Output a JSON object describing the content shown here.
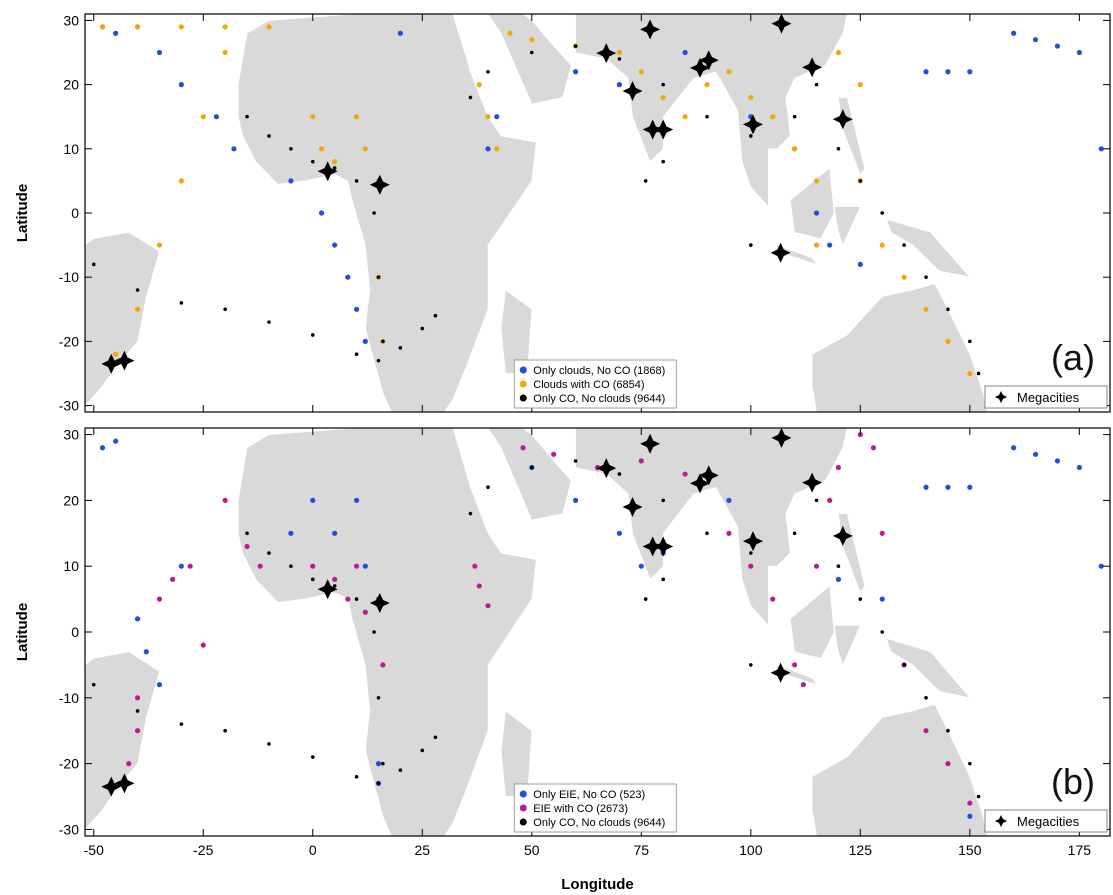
{
  "chart_data": [
    {
      "type": "scatter",
      "panel_label": "(a)",
      "xlabel": "Longitude",
      "ylabel": "Latitude",
      "xlim": [
        -52,
        182
      ],
      "ylim": [
        -31,
        31
      ],
      "xticks": [
        -50,
        -25,
        0,
        25,
        50,
        75,
        100,
        125,
        150,
        175
      ],
      "yticks": [
        30,
        20,
        10,
        0,
        -10,
        -20,
        -30
      ],
      "background": "world map (land in light gray)",
      "legend_position": "bottom-center",
      "series": [
        {
          "name": "Only clouds, No CO (1868)",
          "color": "#1f4fe0",
          "marker": "dot",
          "points": [
            [
              -48,
              29
            ],
            [
              -45,
              28
            ],
            [
              -40,
              29
            ],
            [
              -35,
              25
            ],
            [
              -30,
              20
            ],
            [
              -22,
              15
            ],
            [
              -18,
              10
            ],
            [
              -5,
              5
            ],
            [
              2,
              0
            ],
            [
              5,
              -5
            ],
            [
              8,
              -10
            ],
            [
              10,
              -15
            ],
            [
              12,
              -20
            ],
            [
              20,
              28
            ],
            [
              40,
              10
            ],
            [
              42,
              15
            ],
            [
              60,
              22
            ],
            [
              70,
              20
            ],
            [
              85,
              25
            ],
            [
              100,
              15
            ],
            [
              110,
              10
            ],
            [
              115,
              0
            ],
            [
              118,
              -5
            ],
            [
              125,
              -8
            ],
            [
              140,
              22
            ],
            [
              145,
              22
            ],
            [
              150,
              22
            ],
            [
              160,
              28
            ],
            [
              165,
              27
            ],
            [
              170,
              26
            ],
            [
              175,
              25
            ],
            [
              180,
              -30
            ],
            [
              155,
              -30
            ],
            [
              180,
              10
            ]
          ]
        },
        {
          "name": "Clouds with CO (6854)",
          "color": "#f5a70a",
          "marker": "dot",
          "points": [
            [
              -45,
              -22
            ],
            [
              -40,
              -15
            ],
            [
              -35,
              -5
            ],
            [
              -30,
              5
            ],
            [
              -25,
              15
            ],
            [
              -20,
              25
            ],
            [
              -48,
              29
            ],
            [
              -40,
              29
            ],
            [
              -30,
              29
            ],
            [
              -20,
              29
            ],
            [
              -10,
              29
            ],
            [
              0,
              15
            ],
            [
              2,
              10
            ],
            [
              5,
              8
            ],
            [
              10,
              15
            ],
            [
              12,
              10
            ],
            [
              15,
              5
            ],
            [
              15,
              -10
            ],
            [
              16,
              -20
            ],
            [
              45,
              28
            ],
            [
              50,
              27
            ],
            [
              60,
              26
            ],
            [
              70,
              25
            ],
            [
              75,
              22
            ],
            [
              80,
              18
            ],
            [
              85,
              15
            ],
            [
              90,
              20
            ],
            [
              95,
              22
            ],
            [
              100,
              18
            ],
            [
              105,
              15
            ],
            [
              110,
              10
            ],
            [
              115,
              5
            ],
            [
              115,
              -5
            ],
            [
              120,
              25
            ],
            [
              125,
              20
            ],
            [
              125,
              5
            ],
            [
              130,
              -5
            ],
            [
              135,
              -10
            ],
            [
              140,
              -15
            ],
            [
              145,
              -20
            ],
            [
              150,
              -25
            ],
            [
              38,
              20
            ],
            [
              40,
              15
            ],
            [
              42,
              10
            ]
          ]
        },
        {
          "name": "Only CO, No clouds (9644)",
          "color": "#000000",
          "marker": "dot",
          "points": [
            [
              -50,
              -8
            ],
            [
              -40,
              -12
            ],
            [
              -30,
              -14
            ],
            [
              -20,
              -15
            ],
            [
              -10,
              -17
            ],
            [
              0,
              -19
            ],
            [
              10,
              -22
            ],
            [
              15,
              -23
            ],
            [
              20,
              -21
            ],
            [
              25,
              -18
            ],
            [
              28,
              -16
            ],
            [
              -15,
              15
            ],
            [
              -10,
              12
            ],
            [
              -5,
              10
            ],
            [
              0,
              8
            ],
            [
              5,
              7
            ],
            [
              10,
              5
            ],
            [
              14,
              0
            ],
            [
              15,
              -10
            ],
            [
              16,
              -20
            ],
            [
              36,
              18
            ],
            [
              40,
              22
            ],
            [
              50,
              25
            ],
            [
              60,
              26
            ],
            [
              70,
              24
            ],
            [
              80,
              20
            ],
            [
              90,
              15
            ],
            [
              100,
              12
            ],
            [
              110,
              15
            ],
            [
              115,
              20
            ],
            [
              120,
              10
            ],
            [
              125,
              5
            ],
            [
              130,
              0
            ],
            [
              135,
              -5
            ],
            [
              140,
              -10
            ],
            [
              145,
              -15
            ],
            [
              150,
              -20
            ],
            [
              152,
              -25
            ],
            [
              76,
              5
            ],
            [
              80,
              8
            ],
            [
              100,
              -5
            ]
          ]
        }
      ],
      "megacities": [
        [
          -46,
          -23.5
        ],
        [
          -43,
          -23
        ],
        [
          3.4,
          6.5
        ],
        [
          15.3,
          4.4
        ],
        [
          67,
          24.9
        ],
        [
          73,
          19
        ],
        [
          77,
          28.6
        ],
        [
          77.6,
          13
        ],
        [
          80,
          13
        ],
        [
          88.4,
          22.6
        ],
        [
          90.4,
          23.8
        ],
        [
          100.5,
          13.8
        ],
        [
          106.8,
          -6.2
        ],
        [
          107,
          29.5
        ],
        [
          114,
          22.7
        ],
        [
          121,
          14.6
        ]
      ],
      "megacities_label": "Megacities"
    },
    {
      "type": "scatter",
      "panel_label": "(b)",
      "xlabel": "Longitude",
      "ylabel": "Latitude",
      "xlim": [
        -52,
        182
      ],
      "ylim": [
        -31,
        31
      ],
      "xticks": [
        -50,
        -25,
        0,
        25,
        50,
        75,
        100,
        125,
        150,
        175
      ],
      "yticks": [
        30,
        20,
        10,
        0,
        -10,
        -20,
        -30
      ],
      "background": "world map (land in light gray)",
      "legend_position": "bottom-center",
      "series": [
        {
          "name": "Only EIE, No CO (523)",
          "color": "#1f4fe0",
          "marker": "dot",
          "points": [
            [
              -48,
              28
            ],
            [
              -45,
              29
            ],
            [
              -40,
              2
            ],
            [
              -38,
              -3
            ],
            [
              -35,
              -8
            ],
            [
              -30,
              10
            ],
            [
              -5,
              15
            ],
            [
              0,
              20
            ],
            [
              5,
              15
            ],
            [
              10,
              20
            ],
            [
              12,
              10
            ],
            [
              15,
              -20
            ],
            [
              15,
              -23
            ],
            [
              50,
              25
            ],
            [
              60,
              20
            ],
            [
              70,
              15
            ],
            [
              75,
              10
            ],
            [
              80,
              12
            ],
            [
              95,
              20
            ],
            [
              120,
              8
            ],
            [
              130,
              5
            ],
            [
              140,
              22
            ],
            [
              145,
              22
            ],
            [
              150,
              22
            ],
            [
              160,
              28
            ],
            [
              165,
              27
            ],
            [
              170,
              26
            ],
            [
              175,
              25
            ],
            [
              150,
              -28
            ],
            [
              155,
              -29
            ],
            [
              180,
              10
            ]
          ]
        },
        {
          "name": "EIE with CO (2673)",
          "color": "#c0179f",
          "marker": "dot",
          "points": [
            [
              -42,
              -20
            ],
            [
              -40,
              -15
            ],
            [
              -40,
              -10
            ],
            [
              -35,
              5
            ],
            [
              -32,
              8
            ],
            [
              -28,
              10
            ],
            [
              -25,
              -2
            ],
            [
              -20,
              20
            ],
            [
              -15,
              13
            ],
            [
              -12,
              10
            ],
            [
              0,
              10
            ],
            [
              5,
              8
            ],
            [
              8,
              5
            ],
            [
              10,
              10
            ],
            [
              12,
              3
            ],
            [
              15,
              5
            ],
            [
              16,
              -5
            ],
            [
              37,
              10
            ],
            [
              38,
              7
            ],
            [
              40,
              4
            ],
            [
              48,
              28
            ],
            [
              55,
              27
            ],
            [
              65,
              25
            ],
            [
              75,
              26
            ],
            [
              85,
              24
            ],
            [
              95,
              15
            ],
            [
              100,
              10
            ],
            [
              105,
              5
            ],
            [
              110,
              -5
            ],
            [
              112,
              -8
            ],
            [
              115,
              10
            ],
            [
              118,
              20
            ],
            [
              120,
              25
            ],
            [
              125,
              30
            ],
            [
              128,
              28
            ],
            [
              130,
              15
            ],
            [
              135,
              -5
            ],
            [
              140,
              -15
            ],
            [
              145,
              -20
            ],
            [
              150,
              -26
            ]
          ]
        },
        {
          "name": "Only CO, No clouds (9644)",
          "color": "#000000",
          "marker": "dot",
          "points": [
            [
              -50,
              -8
            ],
            [
              -40,
              -12
            ],
            [
              -30,
              -14
            ],
            [
              -20,
              -15
            ],
            [
              -10,
              -17
            ],
            [
              0,
              -19
            ],
            [
              10,
              -22
            ],
            [
              15,
              -23
            ],
            [
              20,
              -21
            ],
            [
              25,
              -18
            ],
            [
              28,
              -16
            ],
            [
              -15,
              15
            ],
            [
              -10,
              12
            ],
            [
              -5,
              10
            ],
            [
              0,
              8
            ],
            [
              5,
              7
            ],
            [
              10,
              5
            ],
            [
              14,
              0
            ],
            [
              15,
              -10
            ],
            [
              16,
              -20
            ],
            [
              36,
              18
            ],
            [
              40,
              22
            ],
            [
              50,
              25
            ],
            [
              60,
              26
            ],
            [
              70,
              24
            ],
            [
              80,
              20
            ],
            [
              90,
              15
            ],
            [
              100,
              12
            ],
            [
              110,
              15
            ],
            [
              115,
              20
            ],
            [
              120,
              10
            ],
            [
              125,
              5
            ],
            [
              130,
              0
            ],
            [
              135,
              -5
            ],
            [
              140,
              -10
            ],
            [
              145,
              -15
            ],
            [
              150,
              -20
            ],
            [
              152,
              -25
            ],
            [
              76,
              5
            ],
            [
              80,
              8
            ],
            [
              100,
              -5
            ]
          ]
        }
      ],
      "megacities": [
        [
          -46,
          -23.5
        ],
        [
          -43,
          -23
        ],
        [
          3.4,
          6.5
        ],
        [
          15.3,
          4.4
        ],
        [
          67,
          24.9
        ],
        [
          73,
          19
        ],
        [
          77,
          28.6
        ],
        [
          77.6,
          13
        ],
        [
          80,
          13
        ],
        [
          88.4,
          22.6
        ],
        [
          90.4,
          23.8
        ],
        [
          100.5,
          13.8
        ],
        [
          106.8,
          -6.2
        ],
        [
          107,
          29.5
        ],
        [
          114,
          22.7
        ],
        [
          121,
          14.6
        ]
      ],
      "megacities_label": "Megacities"
    }
  ]
}
